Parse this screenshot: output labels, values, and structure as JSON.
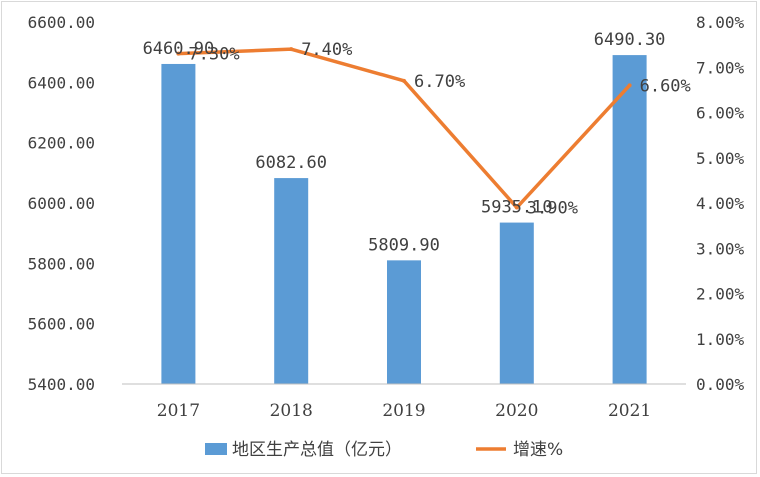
{
  "chart_data": {
    "type": "bar",
    "categories": [
      "2017",
      "2018",
      "2019",
      "2020",
      "2021"
    ],
    "series": [
      {
        "name": "地区生产总值（亿元）",
        "kind": "bar",
        "axis": "left",
        "color": "#5b9bd5",
        "values": [
          6460.9,
          6082.6,
          5809.9,
          5935.1,
          6490.3
        ],
        "labels": [
          "6460.90",
          "6082.60",
          "5809.90",
          "5935.10",
          "6490.30"
        ]
      },
      {
        "name": "增速%",
        "kind": "line",
        "axis": "right",
        "color": "#ed7d31",
        "values": [
          7.3,
          7.4,
          6.7,
          3.9,
          6.6
        ],
        "labels": [
          "7.30%",
          "7.40%",
          "6.70%",
          "3.90%",
          "6.60%"
        ]
      }
    ],
    "y_left": {
      "ylim": [
        5400,
        6600
      ],
      "ticks": [
        "6600.00",
        "6400.00",
        "6200.00",
        "6000.00",
        "5800.00",
        "5600.00",
        "5400.00"
      ],
      "tick_values": [
        6600,
        6400,
        6200,
        6000,
        5800,
        5600,
        5400
      ]
    },
    "y_right": {
      "ylim": [
        0,
        8
      ],
      "ticks": [
        "8.00%",
        "7.00%",
        "6.00%",
        "5.00%",
        "4.00%",
        "3.00%",
        "2.00%",
        "1.00%",
        "0.00%"
      ],
      "tick_values": [
        8,
        7,
        6,
        5,
        4,
        3,
        2,
        1,
        0
      ]
    },
    "grid": false,
    "legend": "bottom"
  }
}
